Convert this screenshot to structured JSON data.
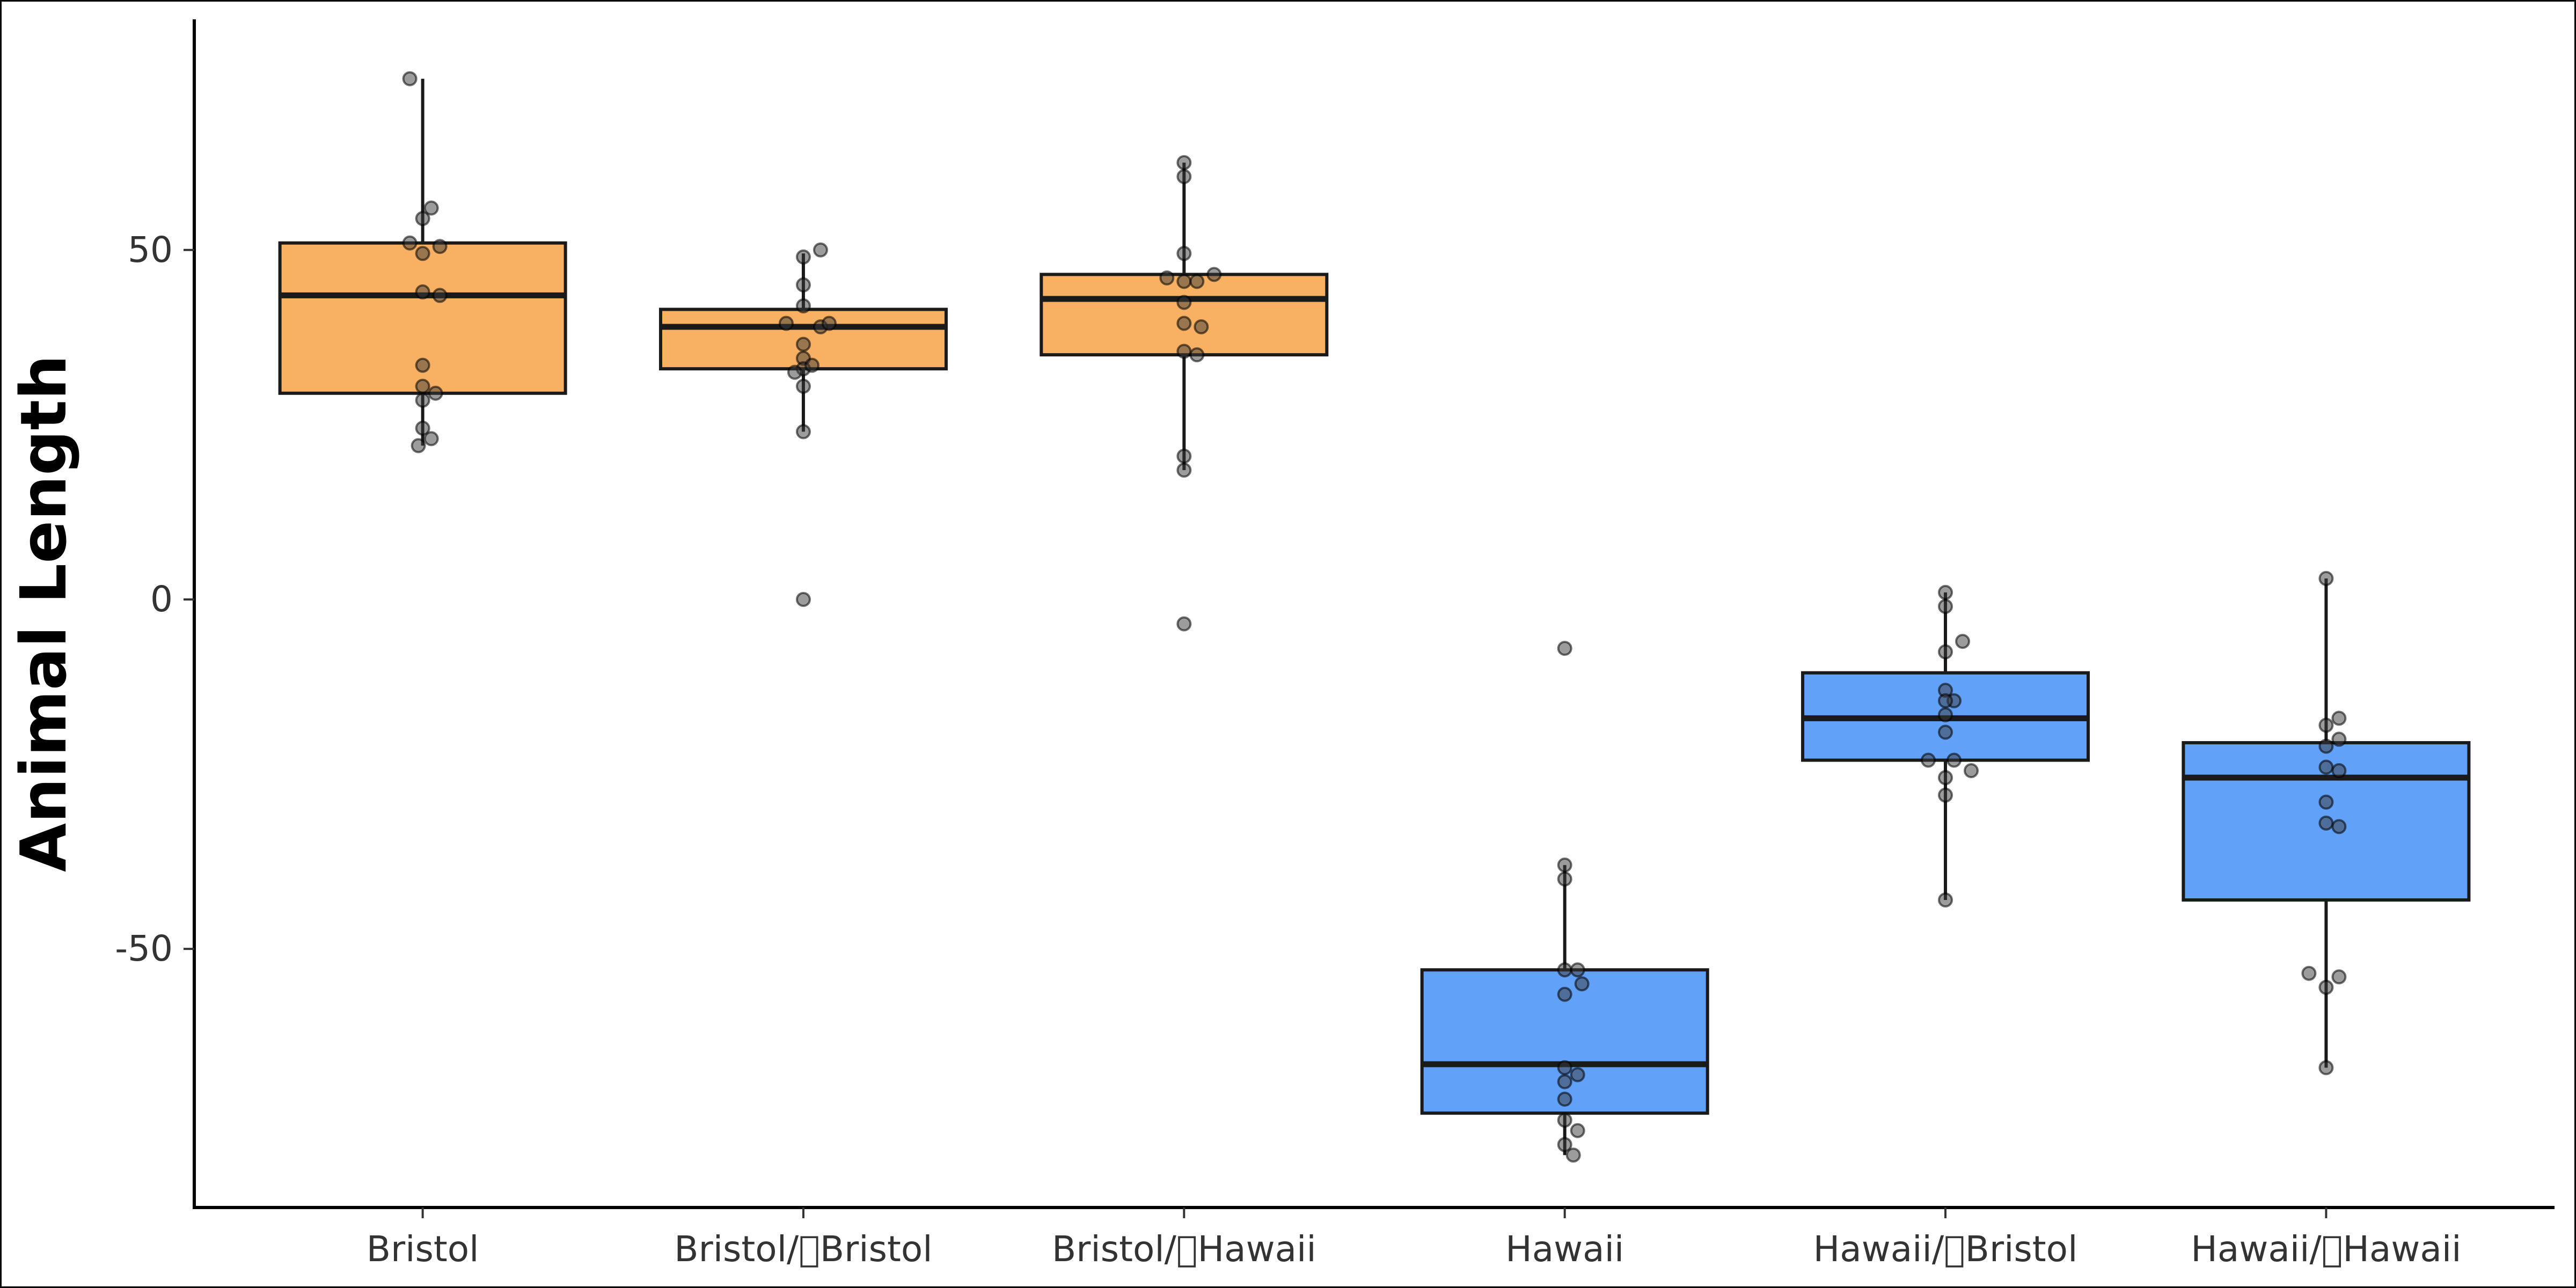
{
  "chart_data": {
    "type": "boxplot",
    "title": "",
    "xlabel": "",
    "ylabel": "Animal Length",
    "ylim": [
      -87,
      83
    ],
    "y_ticks": [
      -50,
      0,
      50
    ],
    "y_tick_labels": [
      "-50",
      "0",
      "50"
    ],
    "grid": false,
    "legend": "none",
    "categories": [
      "Bristol",
      "Bristol/\u0000Bristol",
      "Bristol/\u0000Hawaii",
      "Hawaii",
      "Hawaii/\u0000Bristol",
      "Hawaii/\u0000Hawaii"
    ],
    "colors": {
      "bristol_fill": "#F8B062",
      "hawaii_fill": "#62A1F8"
    },
    "boxes": [
      {
        "category": "Bristol",
        "color": "#F8B062",
        "q1": 29.5,
        "median": 43.5,
        "q3": 51,
        "whisker_low": 22,
        "whisker_high": 74.5,
        "points": [
          [
            -3,
            74.5
          ],
          [
            2,
            56
          ],
          [
            0,
            54.5
          ],
          [
            -3,
            51
          ],
          [
            4,
            50.5
          ],
          [
            0,
            49.5
          ],
          [
            0,
            44
          ],
          [
            4,
            43.5
          ],
          [
            0,
            33.5
          ],
          [
            0,
            30.5
          ],
          [
            3,
            29.5
          ],
          [
            0,
            28.5
          ],
          [
            0,
            24.5
          ],
          [
            2,
            23
          ],
          [
            -1,
            22
          ]
        ]
      },
      {
        "category": "Bristol/\u0000Bristol",
        "color": "#F8B062",
        "q1": 33,
        "median": 39,
        "q3": 41.5,
        "whisker_low": 24,
        "whisker_high": 49.5,
        "points": [
          [
            4,
            50
          ],
          [
            0,
            49
          ],
          [
            0,
            45
          ],
          [
            0,
            42
          ],
          [
            -4,
            39.5
          ],
          [
            4,
            39
          ],
          [
            6,
            39.5
          ],
          [
            0,
            36.5
          ],
          [
            0,
            34.5
          ],
          [
            0,
            33
          ],
          [
            2,
            33.5
          ],
          [
            -2,
            32.5
          ],
          [
            0,
            30.5
          ],
          [
            0,
            24
          ],
          [
            0,
            0
          ]
        ]
      },
      {
        "category": "Bristol/\u0000Hawaii",
        "color": "#F8B062",
        "q1": 35,
        "median": 43,
        "q3": 46.5,
        "whisker_low": 18.5,
        "whisker_high": 62.5,
        "points": [
          [
            0,
            62.5
          ],
          [
            0,
            60.5
          ],
          [
            0,
            49.5
          ],
          [
            -4,
            46
          ],
          [
            0,
            45.5
          ],
          [
            3,
            45.5
          ],
          [
            7,
            46.5
          ],
          [
            0,
            42.5
          ],
          [
            0,
            39.5
          ],
          [
            4,
            39
          ],
          [
            0,
            35.5
          ],
          [
            3,
            35
          ],
          [
            0,
            20.5
          ],
          [
            0,
            18.5
          ],
          [
            0,
            -3.5
          ]
        ]
      },
      {
        "category": "Hawaii",
        "color": "#62A1F8",
        "q1": -73.5,
        "median": -66.5,
        "q3": -53,
        "whisker_low": -79.5,
        "whisker_high": -38,
        "points": [
          [
            0,
            -7
          ],
          [
            0,
            -38
          ],
          [
            0,
            -40
          ],
          [
            0,
            -53
          ],
          [
            3,
            -53
          ],
          [
            4,
            -55
          ],
          [
            0,
            -56.5
          ],
          [
            0,
            -67
          ],
          [
            3,
            -68
          ],
          [
            0,
            -69
          ],
          [
            0,
            -71.5
          ],
          [
            3,
            -76
          ],
          [
            0,
            -74.5
          ],
          [
            0,
            -78
          ],
          [
            2,
            -79.5
          ]
        ]
      },
      {
        "category": "Hawaii/\u0000Bristol",
        "color": "#62A1F8",
        "q1": -23,
        "median": -17,
        "q3": -10.5,
        "whisker_low": -43,
        "whisker_high": 1,
        "points": [
          [
            0,
            1
          ],
          [
            0,
            -1
          ],
          [
            4,
            -6
          ],
          [
            0,
            -7.5
          ],
          [
            0,
            -13
          ],
          [
            2,
            -14.5
          ],
          [
            0,
            -14.5
          ],
          [
            0,
            -16.5
          ],
          [
            0,
            -19
          ],
          [
            -4,
            -23
          ],
          [
            2,
            -23
          ],
          [
            6,
            -24.5
          ],
          [
            0,
            -25.5
          ],
          [
            0,
            -28
          ],
          [
            0,
            -43
          ]
        ]
      },
      {
        "category": "Hawaii/\u0000Hawaii",
        "color": "#62A1F8",
        "q1": -43,
        "median": -25.5,
        "q3": -20.5,
        "whisker_low": -67,
        "whisker_high": 3,
        "points": [
          [
            0,
            3
          ],
          [
            3,
            -17
          ],
          [
            0,
            -18
          ],
          [
            3,
            -20
          ],
          [
            0,
            -21
          ],
          [
            0,
            -24
          ],
          [
            3,
            -24.5
          ],
          [
            0,
            -29
          ],
          [
            0,
            -32
          ],
          [
            3,
            -32.5
          ],
          [
            -4,
            -53.5
          ],
          [
            3,
            -54
          ],
          [
            0,
            -55.5
          ],
          [
            0,
            -67
          ]
        ]
      }
    ]
  }
}
